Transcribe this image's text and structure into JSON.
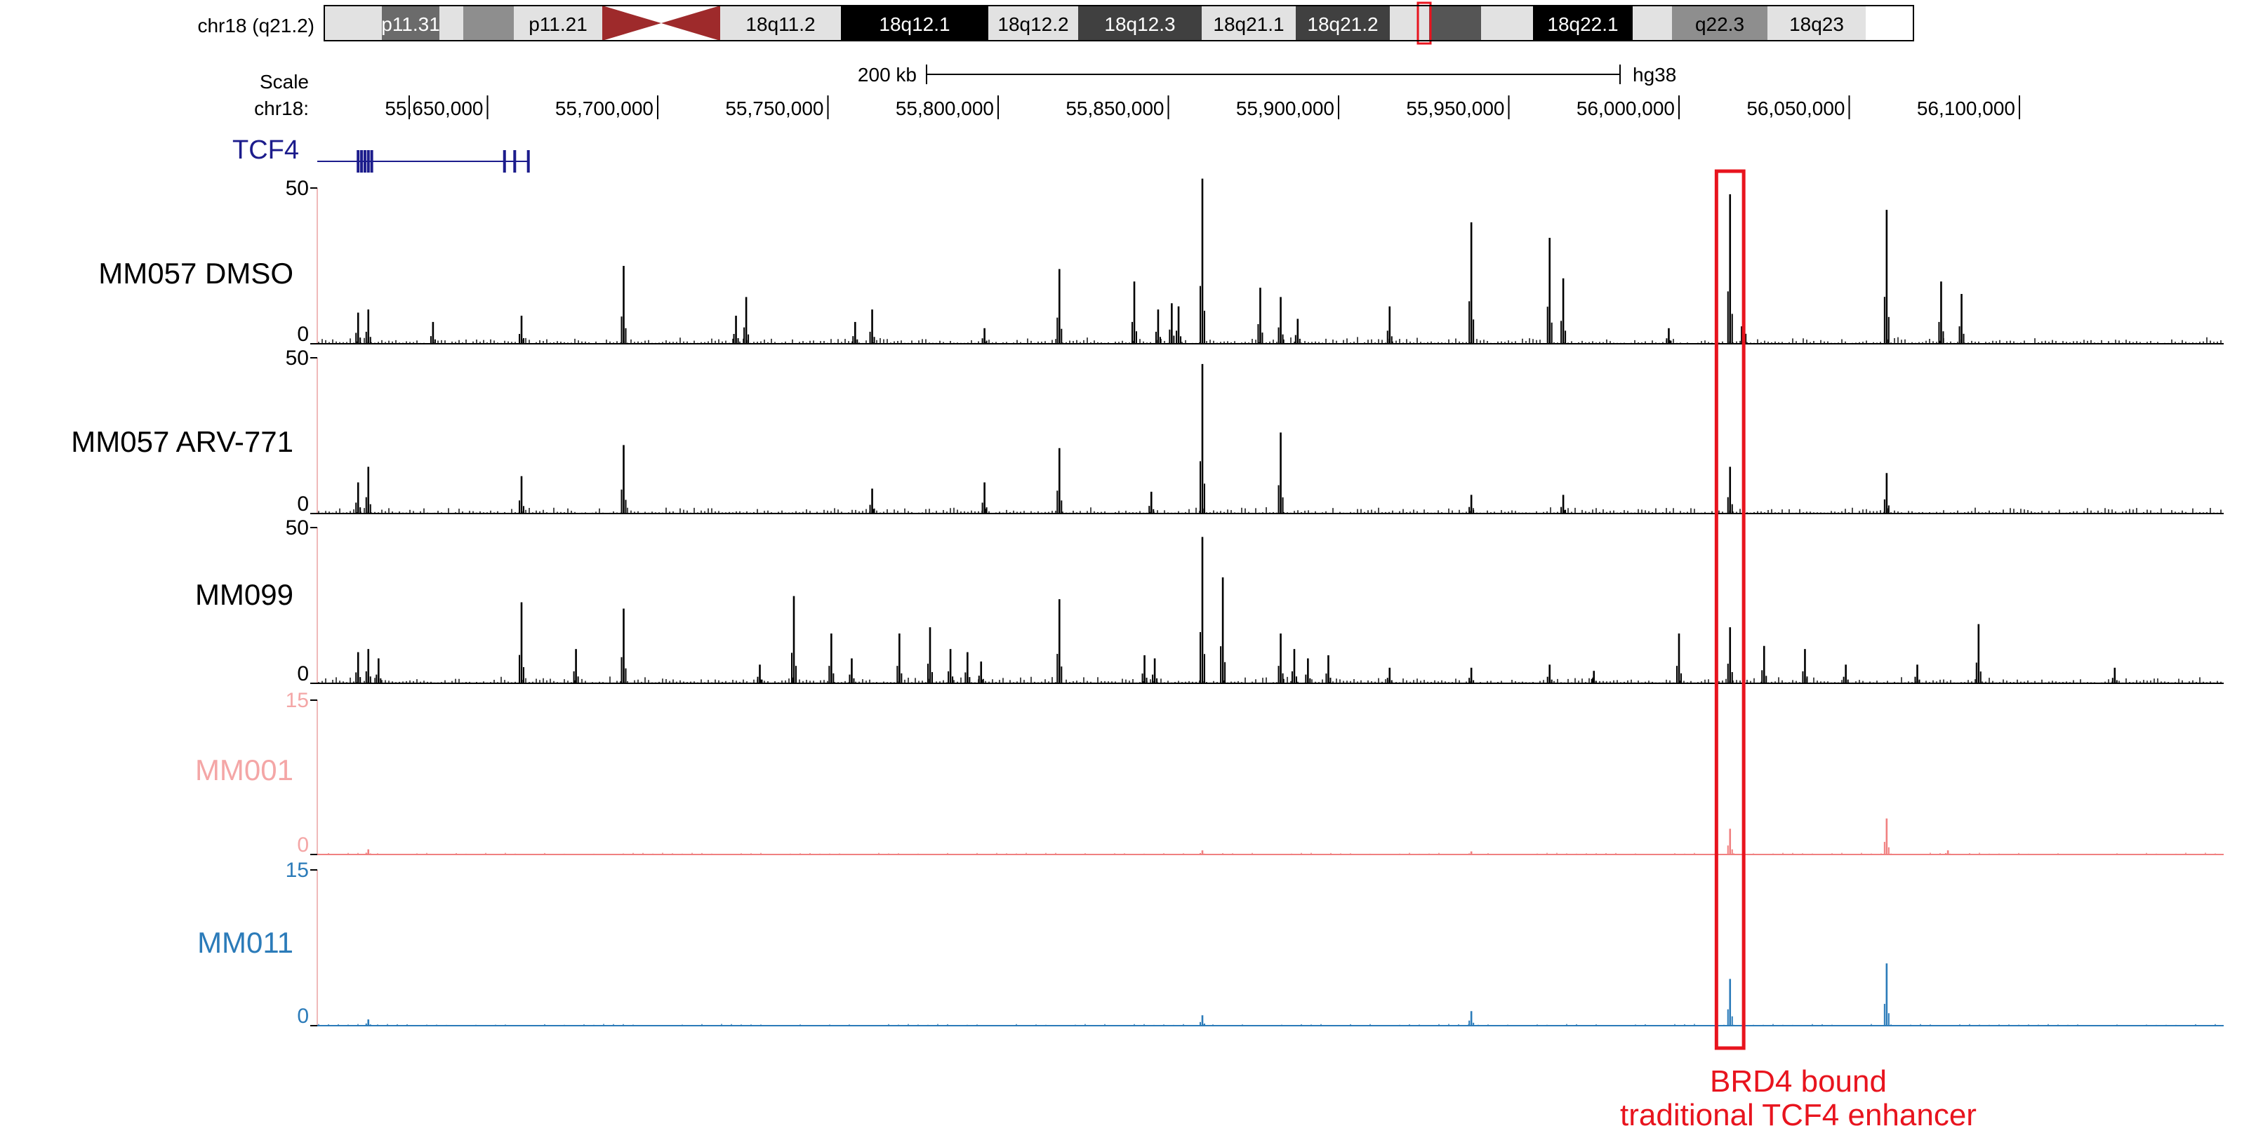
{
  "chart_data": {
    "type": "genome-browser-tracks",
    "chromosome": {
      "label": "chr18 (q21.2)",
      "bands": [
        {
          "label": "",
          "color": "#e2e2e2",
          "text_color": "#000000"
        },
        {
          "label": "p11.31",
          "color": "#6b6b6b",
          "text_color": "#ffffff"
        },
        {
          "label": "",
          "color": "#e2e2e2",
          "text_color": "#000000"
        },
        {
          "label": "",
          "color": "#8e8e8e",
          "text_color": "#000000"
        },
        {
          "label": "p11.21",
          "color": "#e2e2e2",
          "text_color": "#000000"
        },
        {
          "label": "",
          "color": "centromere",
          "text_color": "#000000"
        },
        {
          "label": "18q11.2",
          "color": "#e2e2e2",
          "text_color": "#000000"
        },
        {
          "label": "18q12.1",
          "color": "#000000",
          "text_color": "#ffffff"
        },
        {
          "label": "18q12.2",
          "color": "#e2e2e2",
          "text_color": "#000000"
        },
        {
          "label": "18q12.3",
          "color": "#404040",
          "text_color": "#ffffff"
        },
        {
          "label": "18q21.1",
          "color": "#e2e2e2",
          "text_color": "#000000"
        },
        {
          "label": "18q21.2",
          "color": "#404040",
          "text_color": "#ffffff"
        },
        {
          "label": "",
          "color": "#e2e2e2",
          "text_color": "#000000"
        },
        {
          "label": "",
          "color": "#555555",
          "text_color": "#000000"
        },
        {
          "label": "",
          "color": "#e2e2e2",
          "text_color": "#000000"
        },
        {
          "label": "18q22.1",
          "color": "#000000",
          "text_color": "#ffffff"
        },
        {
          "label": "",
          "color": "#e2e2e2",
          "text_color": "#000000"
        },
        {
          "label": "q22.3",
          "color": "#8e8e8e",
          "text_color": "#000000"
        },
        {
          "label": "18q23",
          "color": "#e2e2e2",
          "text_color": "#000000"
        }
      ],
      "highlight_color": "#e8141e"
    },
    "scale": {
      "label": "Scale",
      "bar_label": "200 kb",
      "bar_kb": 200,
      "assembly": "hg38"
    },
    "coordinate_axis": {
      "label": "chr18:",
      "range": [
        55600000,
        56160000
      ],
      "ticks": [
        {
          "pos": 55627000,
          "label": ""
        },
        {
          "pos": 55650000,
          "label": "55,650,000"
        },
        {
          "pos": 55700000,
          "label": "55,700,000"
        },
        {
          "pos": 55750000,
          "label": "55,750,000"
        },
        {
          "pos": 55800000,
          "label": "55,800,000"
        },
        {
          "pos": 55850000,
          "label": "55,850,000"
        },
        {
          "pos": 55900000,
          "label": "55,900,000"
        },
        {
          "pos": 55950000,
          "label": "55,950,000"
        },
        {
          "pos": 56000000,
          "label": "56,000,000"
        },
        {
          "pos": 56050000,
          "label": "56,050,000"
        },
        {
          "pos": 56100000,
          "label": "56,100,000"
        }
      ]
    },
    "gene": {
      "name": "TCF4",
      "color": "#1c1c8c",
      "start": 55600000,
      "end": 55662000,
      "exons": [
        55612000,
        55613000,
        55614000,
        55615000,
        55616000,
        55655000,
        55658000,
        55662000
      ]
    },
    "tracks": [
      {
        "name": "MM057 DMSO",
        "color": "#000000",
        "label_color": "#000000",
        "ylim": [
          0,
          50
        ],
        "ytick_labels": [
          "50",
          "0"
        ],
        "peaks": [
          [
            55612000,
            10
          ],
          [
            55615000,
            11
          ],
          [
            55634000,
            7
          ],
          [
            55660000,
            9
          ],
          [
            55690000,
            25
          ],
          [
            55723000,
            9
          ],
          [
            55726000,
            15
          ],
          [
            55758000,
            7
          ],
          [
            55763000,
            11
          ],
          [
            55796000,
            5
          ],
          [
            55818000,
            24
          ],
          [
            55840000,
            20
          ],
          [
            55847000,
            11
          ],
          [
            55851000,
            13
          ],
          [
            55853000,
            12
          ],
          [
            55860000,
            53
          ],
          [
            55877000,
            18
          ],
          [
            55883000,
            15
          ],
          [
            55888000,
            8
          ],
          [
            55915000,
            12
          ],
          [
            55939000,
            39
          ],
          [
            55962000,
            34
          ],
          [
            55966000,
            21
          ],
          [
            55997000,
            5
          ],
          [
            56015000,
            48
          ],
          [
            56019000,
            16
          ],
          [
            56061000,
            43
          ],
          [
            56077000,
            20
          ],
          [
            56083000,
            16
          ]
        ]
      },
      {
        "name": "MM057 ARV-771",
        "color": "#000000",
        "label_color": "#000000",
        "ylim": [
          0,
          50
        ],
        "ytick_labels": [
          "50",
          "0"
        ],
        "peaks": [
          [
            55612000,
            10
          ],
          [
            55615000,
            15
          ],
          [
            55660000,
            12
          ],
          [
            55690000,
            22
          ],
          [
            55763000,
            8
          ],
          [
            55796000,
            10
          ],
          [
            55818000,
            21
          ],
          [
            55845000,
            7
          ],
          [
            55860000,
            48
          ],
          [
            55883000,
            26
          ],
          [
            55939000,
            6
          ],
          [
            55966000,
            6
          ],
          [
            56015000,
            15
          ],
          [
            56061000,
            13
          ]
        ]
      },
      {
        "name": "MM099",
        "color": "#000000",
        "label_color": "#000000",
        "ylim": [
          0,
          50
        ],
        "ytick_labels": [
          "50",
          "0"
        ],
        "peaks": [
          [
            55612000,
            10
          ],
          [
            55615000,
            11
          ],
          [
            55618000,
            8
          ],
          [
            55660000,
            26
          ],
          [
            55676000,
            11
          ],
          [
            55690000,
            24
          ],
          [
            55730000,
            6
          ],
          [
            55740000,
            28
          ],
          [
            55751000,
            16
          ],
          [
            55757000,
            8
          ],
          [
            55771000,
            16
          ],
          [
            55780000,
            18
          ],
          [
            55786000,
            11
          ],
          [
            55791000,
            10
          ],
          [
            55795000,
            7
          ],
          [
            55818000,
            27
          ],
          [
            55843000,
            9
          ],
          [
            55846000,
            8
          ],
          [
            55860000,
            47
          ],
          [
            55866000,
            34
          ],
          [
            55883000,
            16
          ],
          [
            55887000,
            11
          ],
          [
            55891000,
            8
          ],
          [
            55897000,
            9
          ],
          [
            55915000,
            5
          ],
          [
            55939000,
            5
          ],
          [
            55962000,
            6
          ],
          [
            55975000,
            4
          ],
          [
            56000000,
            16
          ],
          [
            56015000,
            18
          ],
          [
            56025000,
            12
          ],
          [
            56037000,
            11
          ],
          [
            56049000,
            6
          ],
          [
            56070000,
            6
          ],
          [
            56088000,
            19
          ],
          [
            56128000,
            5
          ]
        ]
      },
      {
        "name": "MM001",
        "color": "#f08080",
        "label_color": "#f4a6a6",
        "ylim": [
          0,
          15
        ],
        "ytick_labels": [
          "15",
          "0"
        ],
        "peaks": [
          [
            55615000,
            0.5
          ],
          [
            55860000,
            0.4
          ],
          [
            55939000,
            0.3
          ],
          [
            56015000,
            2.5
          ],
          [
            56061000,
            3.5
          ],
          [
            56079000,
            0.4
          ]
        ]
      },
      {
        "name": "MM011",
        "color": "#2b7bb9",
        "label_color": "#2b7bb9",
        "ylim": [
          0,
          15
        ],
        "ytick_labels": [
          "15",
          "0"
        ],
        "peaks": [
          [
            55615000,
            0.6
          ],
          [
            55860000,
            1.0
          ],
          [
            55939000,
            1.4
          ],
          [
            56015000,
            4.5
          ],
          [
            56061000,
            6.0
          ]
        ]
      }
    ],
    "annotation": {
      "line1": "BRD4 bound",
      "line2": "traditional TCF4 enhancer",
      "color": "#e8141e",
      "region": [
        56011000,
        56019000
      ]
    }
  }
}
